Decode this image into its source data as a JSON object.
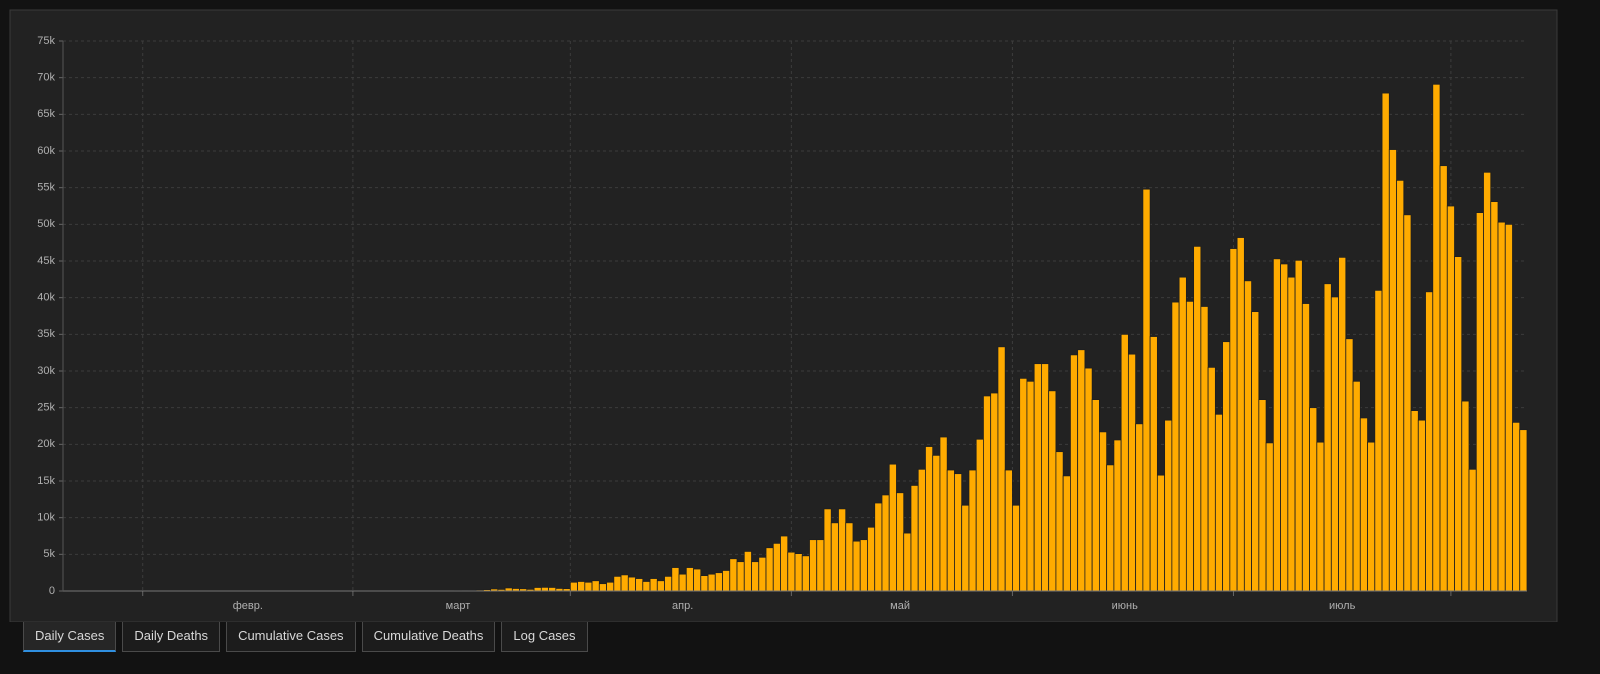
{
  "chart_data": {
    "type": "bar",
    "color": "#ffab00",
    "categories": [
      null,
      null,
      null,
      null,
      null,
      null,
      null,
      null,
      null,
      null,
      null,
      null,
      null,
      null,
      null,
      null,
      null,
      null,
      null,
      null,
      null,
      null,
      null,
      null,
      null,
      "февр.",
      null,
      null,
      null,
      null,
      null,
      null,
      null,
      null,
      null,
      null,
      null,
      null,
      null,
      null,
      null,
      null,
      null,
      null,
      null,
      null,
      null,
      null,
      null,
      null,
      null,
      null,
      null,
      null,
      "март",
      null,
      null,
      null,
      null,
      null,
      null,
      null,
      null,
      null,
      null,
      null,
      null,
      null,
      null,
      null,
      null,
      null,
      null,
      null,
      null,
      null,
      null,
      null,
      null,
      null,
      null,
      null,
      null,
      null,
      null,
      "апр.",
      null,
      null,
      null,
      null,
      null,
      null,
      null,
      null,
      null,
      null,
      null,
      null,
      null,
      null,
      null,
      null,
      null,
      null,
      null,
      null,
      null,
      null,
      null,
      null,
      null,
      null,
      null,
      null,
      null,
      "май",
      null,
      null,
      null,
      null,
      null,
      null,
      null,
      null,
      null,
      null,
      null,
      null,
      null,
      null,
      null,
      null,
      null,
      null,
      null,
      null,
      null,
      null,
      null,
      null,
      null,
      null,
      null,
      null,
      null,
      null,
      "июнь",
      null,
      null,
      null,
      null,
      null,
      null,
      null,
      null,
      null,
      null,
      null,
      null,
      null,
      null,
      null,
      null,
      null,
      null,
      null,
      null,
      null,
      null,
      null,
      null,
      null,
      null,
      null,
      null,
      null,
      "июль",
      null,
      null,
      null,
      null,
      null,
      null,
      null,
      null,
      null,
      null,
      null,
      null,
      null,
      null,
      null,
      null,
      null,
      null,
      null,
      null,
      null,
      null,
      null,
      null,
      null
    ],
    "values": [
      0,
      0,
      0,
      0,
      0,
      0,
      0,
      0,
      0,
      0,
      0,
      0,
      0,
      0,
      0,
      0,
      0,
      0,
      0,
      0,
      0,
      0,
      0,
      0,
      0,
      0,
      0,
      0,
      0,
      0,
      0,
      0,
      0,
      0,
      0,
      1,
      0,
      0,
      0,
      1,
      0,
      1,
      0,
      1,
      5,
      5,
      6,
      5,
      10,
      9,
      18,
      25,
      21,
      23,
      79,
      34,
      57,
      137,
      193,
      283,
      224,
      418,
      345,
      310,
      232,
      482,
      502,
      487,
      352,
      323,
      1200,
      1300,
      1200,
      1400,
      1000,
      1200,
      2000,
      2200,
      1900,
      1700,
      1300,
      1700,
      1400,
      2000,
      3200,
      2300,
      3200,
      3000,
      2100,
      2300,
      2500,
      2800,
      4400,
      4000,
      5400,
      4000,
      4600,
      5900,
      6500,
      7500,
      5300,
      5100,
      4800,
      7000,
      7000,
      11200,
      9300,
      11200,
      9300,
      6800,
      7000,
      8700,
      12000,
      13100,
      17300,
      13400,
      7900,
      14400,
      16600,
      19700,
      18500,
      21000,
      16500,
      16000,
      11700,
      16500,
      20700,
      26600,
      27000,
      33300,
      16500,
      11700,
      29000,
      28600,
      31000,
      31000,
      27300,
      19000,
      15700,
      32200,
      32900,
      30400,
      26100,
      21700,
      17200,
      20600,
      35000,
      32300,
      22800,
      54800,
      34700,
      15800,
      23300,
      39400,
      42800,
      39500,
      47000,
      38800,
      30500,
      24100,
      34000,
      46700,
      48200,
      42300,
      38100,
      26100,
      20200,
      45300,
      44600,
      42800,
      45100,
      39200,
      25000,
      20300,
      41900,
      40100,
      45500,
      34400,
      28600,
      23600,
      20300,
      41000,
      67900,
      60200,
      56000,
      51300,
      24600,
      23300,
      40800,
      69100,
      58000,
      52500,
      45600,
      25900,
      16600,
      51600,
      57100,
      53100,
      50300,
      50000,
      23000,
      22000
    ],
    "ylim": [
      0,
      75000
    ],
    "yticks": [
      0,
      {
        "value": 5000,
        "label": "5k"
      },
      {
        "value": 10000,
        "label": "10k"
      },
      {
        "value": 15000,
        "label": "15k"
      },
      {
        "value": 20000,
        "label": "20k"
      },
      {
        "value": 25000,
        "label": "25k"
      },
      {
        "value": 30000,
        "label": "30k"
      },
      {
        "value": 35000,
        "label": "35k"
      },
      {
        "value": 40000,
        "label": "40k"
      },
      {
        "value": 45000,
        "label": "45k"
      },
      {
        "value": 50000,
        "label": "50k"
      },
      {
        "value": 55000,
        "label": "55k"
      },
      {
        "value": 60000,
        "label": "60k"
      },
      {
        "value": 65000,
        "label": "65k"
      },
      {
        "value": 70000,
        "label": "70k"
      },
      {
        "value": 75000,
        "label": "75k"
      }
    ],
    "grid": true
  },
  "tabs": [
    "Daily Cases",
    "Daily Deaths",
    "Cumulative Cases",
    "Cumulative Deaths",
    "Log Cases"
  ],
  "active_tab": 0
}
